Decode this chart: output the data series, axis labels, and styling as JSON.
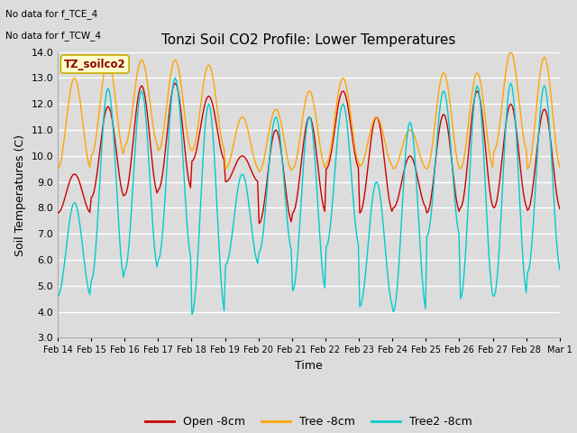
{
  "title": "Tonzi Soil CO2 Profile: Lower Temperatures",
  "xlabel": "Time",
  "ylabel": "Soil Temperatures (C)",
  "ylim": [
    3.0,
    14.0
  ],
  "yticks": [
    3.0,
    4.0,
    5.0,
    6.0,
    7.0,
    8.0,
    9.0,
    10.0,
    11.0,
    12.0,
    13.0,
    14.0
  ],
  "note1": "No data for f_TCE_4",
  "note2": "No data for f_TCW_4",
  "legend_label": "TZ_soilco2",
  "bg_color": "#dcdcdc",
  "line_colors": {
    "open": "#cc0000",
    "tree": "#ffa500",
    "tree2": "#00cccc"
  },
  "legend_entries": [
    "Open -8cm",
    "Tree -8cm",
    "Tree2 -8cm"
  ],
  "x_tick_labels": [
    "Feb 14",
    "Feb 15",
    "Feb 16",
    "Feb 17",
    "Feb 18",
    "Feb 19",
    "Feb 20",
    "Feb 21",
    "Feb 22",
    "Feb 23",
    "Feb 24",
    "Feb 25",
    "Feb 26",
    "Feb 27",
    "Feb 28",
    "Mar 1"
  ]
}
